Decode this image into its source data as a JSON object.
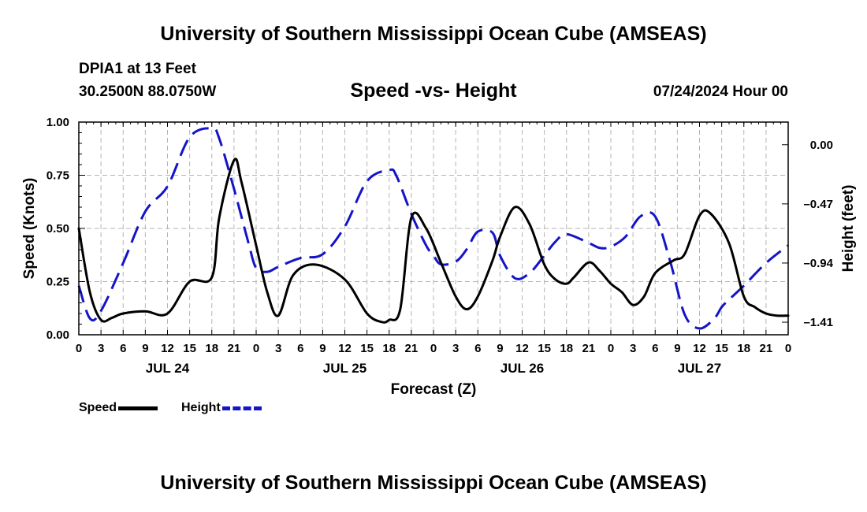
{
  "header": {
    "title": "University of Southern Mississippi Ocean Cube (AMSEAS)",
    "station": "DPIA1 at 13 Feet",
    "coords": "30.2500N  88.0750W",
    "subtitle": "Speed -vs- Height",
    "datetime": "07/24/2024 Hour 00"
  },
  "footer": {
    "title": "University of Southern Mississippi Ocean Cube (AMSEAS)"
  },
  "legend": {
    "speed_label": "Speed",
    "height_label": "Height"
  },
  "colors": {
    "speed": "#000000",
    "height": "#1414c8",
    "grid": "#b4b4b4"
  },
  "chart_data": {
    "type": "line",
    "title": "Speed -vs- Height",
    "xlabel": "Forecast (Z)",
    "ylabel": "Speed (Knots)",
    "y2label": "Height (feet)",
    "x_range": [
      0,
      96
    ],
    "x_ticks": [
      0,
      3,
      6,
      9,
      12,
      15,
      18,
      21,
      24,
      27,
      30,
      33,
      36,
      39,
      42,
      45,
      48,
      51,
      54,
      57,
      60,
      63,
      66,
      69,
      72,
      75,
      78,
      81,
      84,
      87,
      90,
      93,
      96
    ],
    "x_tick_labels": [
      "0",
      "3",
      "6",
      "9",
      "12",
      "15",
      "18",
      "21",
      "0",
      "3",
      "6",
      "9",
      "12",
      "15",
      "18",
      "21",
      "0",
      "3",
      "6",
      "9",
      "12",
      "15",
      "18",
      "21",
      "0",
      "3",
      "6",
      "9",
      "12",
      "15",
      "18",
      "21",
      "0"
    ],
    "date_labels": [
      {
        "x": 12,
        "label": "JUL 24"
      },
      {
        "x": 36,
        "label": "JUL 25"
      },
      {
        "x": 60,
        "label": "JUL 26"
      },
      {
        "x": 84,
        "label": "JUL 27"
      }
    ],
    "ylim": [
      0,
      1
    ],
    "y_ticks": [
      0,
      0.25,
      0.5,
      0.75,
      1.0
    ],
    "y_tick_labels": [
      "0.00",
      "0.25",
      "0.50",
      "0.75",
      "1.00"
    ],
    "y2lim": [
      -1.51,
      0.18
    ],
    "y2_ticks": [
      0.0,
      -0.47,
      -0.94,
      -1.41
    ],
    "y2_tick_labels": [
      "0.00",
      "–0.47",
      "–0.94",
      "–1.41"
    ],
    "grid": true,
    "series": [
      {
        "name": "Speed",
        "axis": "left",
        "style": "solid",
        "x": [
          0,
          1.5,
          3,
          4.5,
          6,
          9,
          12,
          15,
          18,
          19,
          21,
          22,
          24,
          25.5,
          27,
          29,
          32,
          36,
          39,
          41,
          42,
          43.5,
          45,
          47,
          49,
          51,
          52.5,
          54,
          56,
          57,
          59,
          61,
          63,
          64.5,
          66,
          67,
          69,
          70.5,
          72,
          73.5,
          75,
          76.5,
          78,
          80.5,
          82,
          84,
          85.5,
          88,
          90,
          91.5,
          93,
          94.5,
          96
        ],
        "values": [
          0.5,
          0.2,
          0.07,
          0.08,
          0.1,
          0.11,
          0.1,
          0.25,
          0.27,
          0.55,
          0.82,
          0.72,
          0.42,
          0.2,
          0.09,
          0.28,
          0.33,
          0.26,
          0.1,
          0.06,
          0.07,
          0.12,
          0.55,
          0.5,
          0.34,
          0.18,
          0.12,
          0.18,
          0.35,
          0.46,
          0.6,
          0.52,
          0.33,
          0.26,
          0.24,
          0.27,
          0.34,
          0.3,
          0.24,
          0.2,
          0.14,
          0.18,
          0.29,
          0.35,
          0.38,
          0.56,
          0.57,
          0.43,
          0.18,
          0.13,
          0.1,
          0.09,
          0.09
        ]
      },
      {
        "name": "Height",
        "axis": "right",
        "style": "dashed",
        "x": [
          0,
          1.5,
          3,
          6,
          9,
          12,
          15,
          18,
          19,
          21,
          23,
          24,
          25.5,
          27,
          30,
          33,
          36,
          39,
          42,
          43,
          45,
          47,
          48,
          49,
          51,
          52.5,
          54,
          56,
          57,
          59,
          61,
          63,
          64.5,
          66,
          69,
          70.5,
          72,
          74,
          76,
          78,
          80,
          82,
          84,
          86,
          87,
          88,
          90,
          93,
          96
        ],
        "values": [
          -1.12,
          -1.38,
          -1.32,
          -0.94,
          -0.53,
          -0.33,
          0.06,
          0.13,
          0.05,
          -0.35,
          -0.79,
          -0.98,
          -1.01,
          -0.97,
          -0.9,
          -0.87,
          -0.65,
          -0.29,
          -0.2,
          -0.25,
          -0.55,
          -0.8,
          -0.88,
          -0.95,
          -0.93,
          -0.83,
          -0.69,
          -0.7,
          -0.88,
          -1.06,
          -1.02,
          -0.88,
          -0.77,
          -0.71,
          -0.78,
          -0.82,
          -0.81,
          -0.73,
          -0.57,
          -0.57,
          -0.92,
          -1.35,
          -1.46,
          -1.38,
          -1.29,
          -1.23,
          -1.12,
          -0.94,
          -0.8
        ]
      }
    ]
  }
}
